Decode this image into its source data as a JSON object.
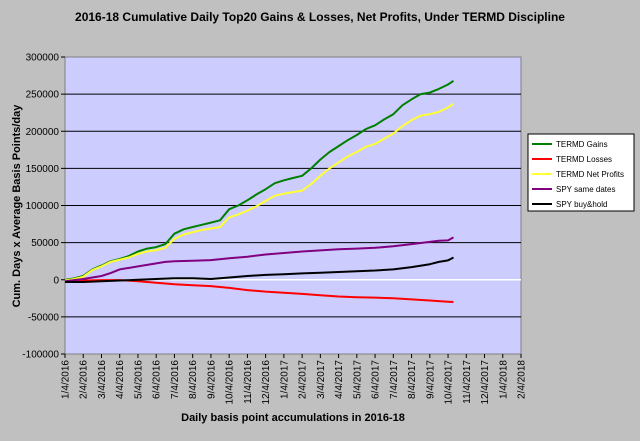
{
  "chart_data": {
    "type": "line",
    "title": "2016-18 Cumulative Daily Top20 Gains & Losses, Net Profits, Under TERMD Discipline",
    "xlabel": "Daily basis point accumulations in 2016-18",
    "ylabel": "Cum. Days x Average Basis Points/day",
    "ylim": [
      -100000,
      300000
    ],
    "yticks": [
      -100000,
      -50000,
      0,
      50000,
      100000,
      150000,
      200000,
      250000,
      300000
    ],
    "xlim": [
      0,
      25
    ],
    "x_tick_labels": [
      "1/4/2016",
      "2/4/2016",
      "3/4/2016",
      "4/4/2016",
      "5/4/2016",
      "6/4/2016",
      "7/4/2016",
      "8/4/2016",
      "9/4/2016",
      "10/4/2016",
      "11/4/2016",
      "12/4/2016",
      "1/4/2017",
      "2/4/2017",
      "3/4/2017",
      "4/4/2017",
      "5/4/2017",
      "6/4/2017",
      "7/4/2017",
      "8/4/2017",
      "9/4/2017",
      "10/4/2017",
      "11/4/2017",
      "12/4/2017",
      "1/4/2018",
      "2/4/2018"
    ],
    "grid": true,
    "legend_position": "right",
    "series": [
      {
        "name": "TERMD Gains",
        "color": "#008000",
        "points": [
          [
            0,
            0
          ],
          [
            0.5,
            2000
          ],
          [
            1,
            5000
          ],
          [
            1.5,
            14000
          ],
          [
            2,
            19000
          ],
          [
            2.5,
            25000
          ],
          [
            3,
            28000
          ],
          [
            3.5,
            32000
          ],
          [
            4,
            38000
          ],
          [
            4.5,
            42000
          ],
          [
            5,
            44000
          ],
          [
            5.5,
            48000
          ],
          [
            6,
            62000
          ],
          [
            6.5,
            68000
          ],
          [
            7,
            71000
          ],
          [
            7.5,
            74000
          ],
          [
            8,
            77000
          ],
          [
            8.5,
            80000
          ],
          [
            9,
            95000
          ],
          [
            9.5,
            100000
          ],
          [
            10,
            107000
          ],
          [
            10.5,
            115000
          ],
          [
            11,
            122000
          ],
          [
            11.5,
            130000
          ],
          [
            12,
            134000
          ],
          [
            12.5,
            137000
          ],
          [
            13,
            140000
          ],
          [
            13.5,
            150000
          ],
          [
            14,
            162000
          ],
          [
            14.5,
            172000
          ],
          [
            15,
            180000
          ],
          [
            15.5,
            188000
          ],
          [
            16,
            195000
          ],
          [
            16.5,
            203000
          ],
          [
            17,
            208000
          ],
          [
            17.5,
            216000
          ],
          [
            18,
            223000
          ],
          [
            18.5,
            235000
          ],
          [
            19,
            243000
          ],
          [
            19.5,
            250000
          ],
          [
            20,
            252000
          ],
          [
            20.5,
            257000
          ],
          [
            21,
            263000
          ],
          [
            21.3,
            268000
          ]
        ]
      },
      {
        "name": "TERMD Losses",
        "color": "#ff0000",
        "points": [
          [
            0,
            -1000
          ],
          [
            1,
            -1000
          ],
          [
            2,
            -500
          ],
          [
            3,
            -500
          ],
          [
            4,
            -2000
          ],
          [
            5,
            -4000
          ],
          [
            6,
            -6000
          ],
          [
            7,
            -7500
          ],
          [
            8,
            -8500
          ],
          [
            9,
            -11000
          ],
          [
            10,
            -14000
          ],
          [
            11,
            -16000
          ],
          [
            12,
            -17500
          ],
          [
            13,
            -19000
          ],
          [
            14,
            -21000
          ],
          [
            15,
            -22500
          ],
          [
            16,
            -23500
          ],
          [
            17,
            -24000
          ],
          [
            18,
            -25000
          ],
          [
            19,
            -26500
          ],
          [
            20,
            -28000
          ],
          [
            21,
            -29500
          ],
          [
            21.3,
            -30000
          ]
        ]
      },
      {
        "name": "TERMD Net Profits",
        "color": "#ffff33",
        "points": [
          [
            0,
            -1000
          ],
          [
            0.5,
            1000
          ],
          [
            1,
            4000
          ],
          [
            1.5,
            13000
          ],
          [
            2,
            18000
          ],
          [
            2.5,
            24000
          ],
          [
            3,
            27000
          ],
          [
            3.5,
            30000
          ],
          [
            4,
            35000
          ],
          [
            4.5,
            38000
          ],
          [
            5,
            40000
          ],
          [
            5.5,
            43000
          ],
          [
            6,
            55000
          ],
          [
            6.5,
            61000
          ],
          [
            7,
            64000
          ],
          [
            7.5,
            67000
          ],
          [
            8,
            69000
          ],
          [
            8.5,
            71000
          ],
          [
            9,
            84000
          ],
          [
            9.5,
            88000
          ],
          [
            10,
            93000
          ],
          [
            10.5,
            99000
          ],
          [
            11,
            106000
          ],
          [
            11.5,
            113000
          ],
          [
            12,
            116000
          ],
          [
            12.5,
            118000
          ],
          [
            13,
            120000
          ],
          [
            13.5,
            129000
          ],
          [
            14,
            140000
          ],
          [
            14.5,
            150000
          ],
          [
            15,
            158000
          ],
          [
            15.5,
            166000
          ],
          [
            16,
            172000
          ],
          [
            16.5,
            179000
          ],
          [
            17,
            183000
          ],
          [
            17.5,
            190000
          ],
          [
            18,
            197000
          ],
          [
            18.5,
            207000
          ],
          [
            19,
            215000
          ],
          [
            19.5,
            221000
          ],
          [
            20,
            223000
          ],
          [
            20.5,
            226000
          ],
          [
            21,
            232000
          ],
          [
            21.3,
            237000
          ]
        ]
      },
      {
        "name": "SPY same dates",
        "color": "#800080",
        "points": [
          [
            0,
            -2000
          ],
          [
            1,
            1000
          ],
          [
            2,
            5000
          ],
          [
            2.5,
            9000
          ],
          [
            3,
            14000
          ],
          [
            4,
            18000
          ],
          [
            5,
            22000
          ],
          [
            5.5,
            24000
          ],
          [
            6,
            25000
          ],
          [
            7,
            25500
          ],
          [
            8,
            26500
          ],
          [
            9,
            29000
          ],
          [
            10,
            31000
          ],
          [
            11,
            34000
          ],
          [
            12,
            36000
          ],
          [
            13,
            38000
          ],
          [
            14,
            39500
          ],
          [
            15,
            41000
          ],
          [
            16,
            42000
          ],
          [
            17,
            43000
          ],
          [
            18,
            45000
          ],
          [
            19,
            48000
          ],
          [
            20,
            51000
          ],
          [
            20.5,
            52500
          ],
          [
            21,
            53000
          ],
          [
            21.3,
            57000
          ]
        ]
      },
      {
        "name": "SPY buy&hold",
        "color": "#000000",
        "points": [
          [
            0,
            -3000
          ],
          [
            1,
            -3000
          ],
          [
            2,
            -2000
          ],
          [
            3,
            -1000
          ],
          [
            4,
            0
          ],
          [
            5,
            1000
          ],
          [
            6,
            2000
          ],
          [
            7,
            2000
          ],
          [
            8,
            1000
          ],
          [
            9,
            3000
          ],
          [
            10,
            5000
          ],
          [
            11,
            6500
          ],
          [
            12,
            7500
          ],
          [
            13,
            8500
          ],
          [
            14,
            9500
          ],
          [
            15,
            10500
          ],
          [
            16,
            11500
          ],
          [
            17,
            12500
          ],
          [
            18,
            14000
          ],
          [
            19,
            17000
          ],
          [
            20,
            21000
          ],
          [
            20.5,
            24000
          ],
          [
            21,
            26000
          ],
          [
            21.3,
            30000
          ]
        ]
      }
    ]
  }
}
